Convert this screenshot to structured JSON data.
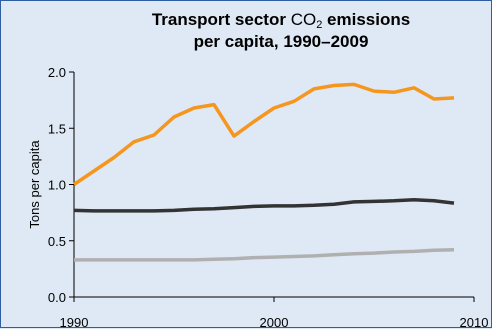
{
  "chart_data": {
    "type": "line",
    "title_prefix": "Transport sector ",
    "title_co": "CO",
    "title_sub": "2",
    "title_suffix": " emissions",
    "title_line2": "per capita, 1990–2009",
    "xlabel": "",
    "ylabel": "Tons per capita",
    "xlim": [
      1990,
      2010
    ],
    "ylim": [
      0,
      2.0
    ],
    "x_ticks": [
      1990,
      2000,
      2010
    ],
    "x_tick_labels": [
      "1990",
      "2000",
      "2010"
    ],
    "y_ticks": [
      0,
      0.5,
      1.0,
      1.5,
      2.0
    ],
    "y_tick_labels": [
      "0.0",
      "0.5",
      "1.0",
      "1.5",
      "2.0"
    ],
    "grid": false,
    "x": [
      1990,
      1991,
      1992,
      1993,
      1994,
      1995,
      1996,
      1997,
      1998,
      1999,
      2000,
      2001,
      2002,
      2003,
      2004,
      2005,
      2006,
      2007,
      2008,
      2009
    ],
    "series": [
      {
        "color": "#f5961e",
        "values": [
          1.0,
          1.12,
          1.24,
          1.38,
          1.44,
          1.6,
          1.68,
          1.71,
          1.43,
          1.56,
          1.68,
          1.74,
          1.85,
          1.88,
          1.89,
          1.83,
          1.82,
          1.86,
          1.76,
          1.77
        ]
      },
      {
        "color": "#333333",
        "values": [
          0.77,
          0.765,
          0.765,
          0.765,
          0.765,
          0.77,
          0.78,
          0.785,
          0.795,
          0.805,
          0.81,
          0.81,
          0.815,
          0.825,
          0.845,
          0.85,
          0.855,
          0.865,
          0.855,
          0.835
        ]
      },
      {
        "color": "#b0b0b0",
        "values": [
          0.33,
          0.33,
          0.33,
          0.33,
          0.33,
          0.33,
          0.33,
          0.335,
          0.34,
          0.35,
          0.355,
          0.36,
          0.365,
          0.375,
          0.385,
          0.39,
          0.4,
          0.405,
          0.415,
          0.42
        ]
      }
    ]
  }
}
